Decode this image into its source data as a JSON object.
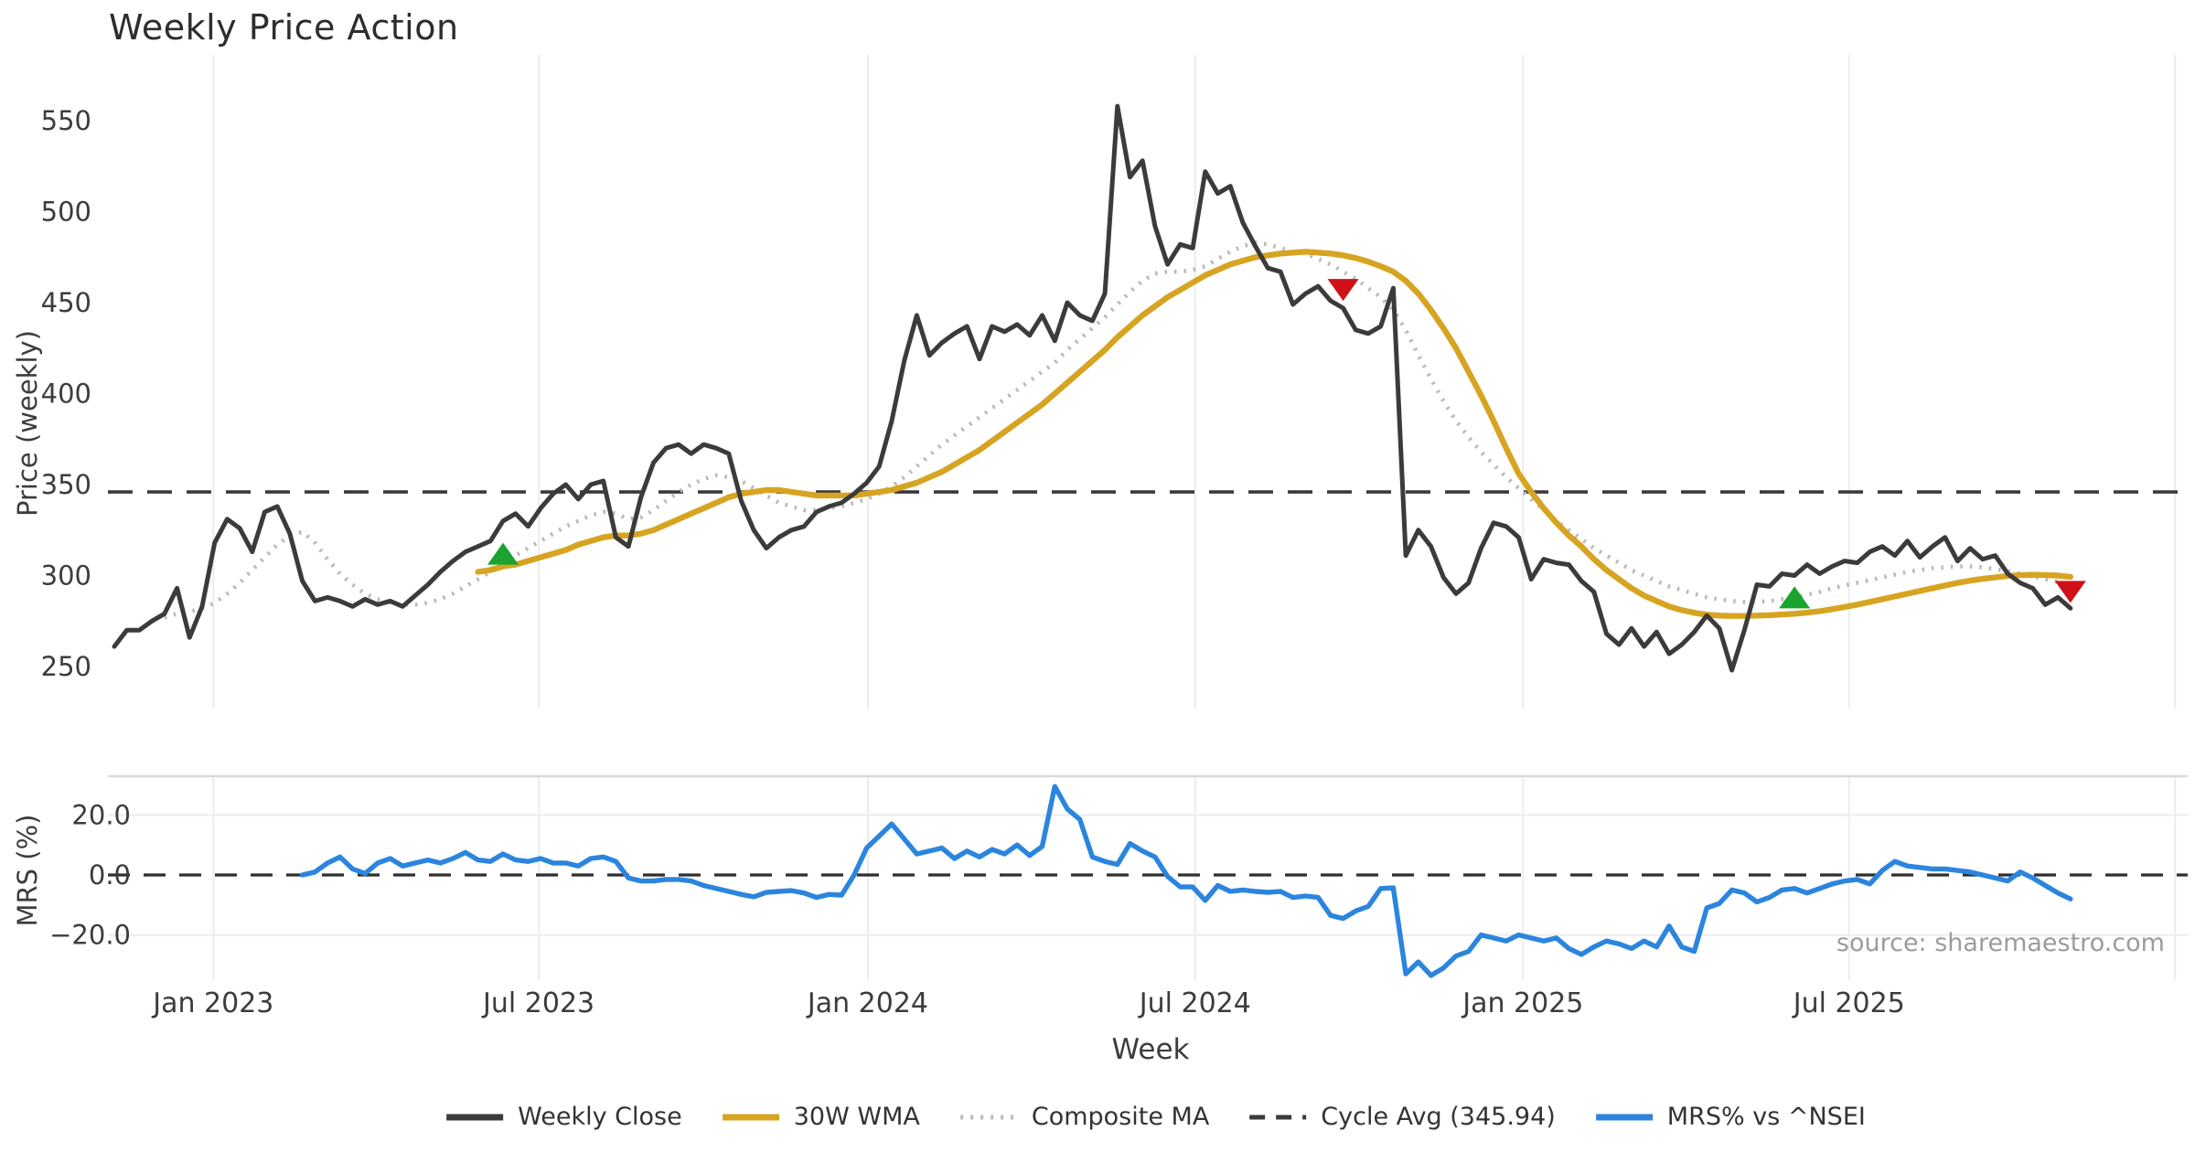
{
  "title": "Weekly Price Action",
  "source": "source: sharemaestro.com",
  "axes": {
    "price_label": "Price (weekly)",
    "mrs_label": "MRS (%)",
    "x_label": "Week",
    "price_ticks": [
      550,
      500,
      450,
      400,
      350,
      300,
      250
    ],
    "mrs_ticks": [
      {
        "label": "20.0",
        "value": 20
      },
      {
        "label": "0.0",
        "value": 0
      },
      {
        "label": "−20.0",
        "value": -20
      }
    ],
    "x_ticks": [
      {
        "label": "Jan 2023",
        "week": 7.9
      },
      {
        "label": "Jul 2023",
        "week": 33.85
      },
      {
        "label": "Jan 2024",
        "week": 60.1
      },
      {
        "label": "Jul 2024",
        "week": 86.2
      },
      {
        "label": "Jan 2025",
        "week": 112.35
      },
      {
        "label": "Jul 2025",
        "week": 138.35
      },
      {
        "label": "",
        "week": 164.35
      }
    ]
  },
  "legend": {
    "items": [
      {
        "label": "Weekly Close",
        "style": "solid",
        "color": "#3b3b3b"
      },
      {
        "label": "30W WMA",
        "style": "solid",
        "color": "#d7a422"
      },
      {
        "label": "Composite MA",
        "style": "dotted",
        "color": "#b9b9b9"
      },
      {
        "label": "Cycle Avg (345.94)",
        "style": "dashed",
        "color": "#3a3a3a"
      },
      {
        "label": "MRS% vs ^NSEI",
        "style": "solid",
        "color": "#2b85de"
      }
    ]
  },
  "colors": {
    "close": "#3b3b3b",
    "wma": "#d7a422",
    "composite": "#b9b9b9",
    "cycle": "#3a3a3a",
    "mrs": "#2b85de",
    "buy": "#1aa32e",
    "sell": "#cf1117",
    "grid": "#ececec",
    "panel_spine": "#d9d9d9",
    "hgrid": "#efefef",
    "tick_text": "#3c3c3c"
  },
  "chart_data": {
    "type": "line",
    "x_unit": "weeks",
    "n_weeks": 157,
    "cycle_avg": 345.94,
    "price_ylim": [
      235,
      575
    ],
    "mrs_ylim": [
      -33,
      33
    ],
    "series": [
      {
        "name": "Weekly Close",
        "panel": "price",
        "start_week": 0,
        "values": [
          261,
          270,
          270,
          275,
          279,
          293,
          266,
          283,
          318,
          331,
          326,
          313,
          335,
          338,
          323,
          297,
          286,
          288,
          286,
          283,
          287,
          284,
          286,
          283,
          289,
          295,
          302,
          308,
          313,
          316,
          319,
          330,
          334,
          327,
          337,
          345,
          350,
          342,
          350,
          352,
          321,
          316,
          343,
          362,
          370,
          372,
          367,
          372,
          370,
          367,
          341,
          325,
          315,
          321,
          325,
          327,
          335,
          338,
          340,
          345,
          351,
          360,
          385,
          418,
          443,
          421,
          428,
          433,
          437,
          419,
          437,
          434,
          438,
          432,
          443,
          429,
          450,
          443,
          440,
          455,
          558,
          519,
          528,
          492,
          471,
          482,
          480,
          522,
          510,
          514,
          494,
          481,
          469,
          467,
          449,
          455,
          459,
          451,
          447,
          435,
          433,
          437,
          458,
          311,
          325,
          316,
          299,
          290,
          296,
          315,
          329,
          327,
          321,
          298,
          309,
          307,
          306,
          297,
          291,
          268,
          262,
          271,
          261,
          269,
          257,
          262,
          269,
          278,
          271,
          248,
          270,
          295,
          294,
          301,
          300,
          306,
          301,
          305,
          308,
          307,
          313,
          316,
          311,
          319,
          310,
          316,
          321,
          308,
          315,
          309,
          311,
          301,
          296,
          293,
          284,
          288,
          282
        ]
      },
      {
        "name": "30W WMA",
        "panel": "price",
        "start_week": 29,
        "values": [
          302,
          303,
          305,
          306,
          308,
          310,
          312,
          314,
          317,
          319,
          321,
          322,
          322,
          323,
          325,
          328,
          331,
          334,
          337,
          340,
          343,
          345,
          346,
          347,
          347,
          346,
          345,
          344,
          344,
          344,
          344,
          345,
          346,
          347,
          349,
          351,
          354,
          357,
          361,
          365,
          369,
          374,
          379,
          384,
          389,
          394,
          400,
          406,
          412,
          418,
          424,
          431,
          437,
          443,
          448,
          453,
          457,
          461,
          465,
          468,
          471,
          473,
          475,
          476,
          477,
          477.5,
          478,
          477.5,
          477,
          476,
          474.5,
          472.5,
          470,
          467,
          462,
          455,
          446,
          436,
          425,
          412,
          399,
          385,
          370,
          356,
          346,
          337,
          329,
          322,
          316,
          309,
          303,
          298,
          293,
          289,
          286,
          283,
          281,
          279.5,
          278.5,
          278,
          277.8,
          277.8,
          278,
          278.2,
          278.6,
          279,
          279.6,
          280.4,
          281.5,
          282.7,
          284,
          285.5,
          287,
          288.5,
          290,
          291.5,
          293,
          294.5,
          296,
          297.2,
          298.2,
          299,
          299.8,
          300.2,
          300.4,
          300.3,
          300,
          299.3
        ]
      },
      {
        "name": "Composite MA",
        "panel": "price",
        "start_week": 4,
        "values": [
          277,
          279,
          280,
          282,
          285,
          290,
          296,
          303,
          310,
          317,
          322,
          324,
          318,
          309,
          301,
          295,
          290,
          287,
          285,
          284,
          284,
          285,
          287,
          290,
          294,
          298,
          302,
          307,
          311,
          315,
          319,
          323,
          327,
          330,
          333,
          335,
          334,
          331,
          332,
          336,
          341,
          346,
          350,
          353,
          355,
          354,
          352,
          348,
          344,
          340,
          338,
          336,
          336,
          337,
          338,
          340,
          342,
          345,
          349,
          354,
          360,
          366,
          372,
          377,
          382,
          387,
          392,
          397,
          402,
          407,
          412,
          417,
          424,
          430,
          436,
          442,
          449,
          456,
          462,
          466,
          467,
          467,
          468,
          470,
          474,
          478,
          481,
          483,
          482,
          480,
          478,
          477,
          474,
          471,
          467,
          463,
          458,
          453,
          446,
          435,
          421,
          408,
          396,
          385,
          376,
          368,
          361,
          354,
          348,
          342,
          336,
          330,
          325,
          320,
          315,
          311,
          307,
          303,
          300,
          297,
          294,
          292,
          290,
          288,
          287,
          286,
          285.5,
          285.5,
          286,
          287,
          288,
          289.5,
          291,
          293,
          294.5,
          296,
          297.5,
          299,
          300.5,
          302,
          303,
          304,
          304.5,
          305,
          305,
          304.5,
          303.5,
          302.5,
          301,
          299.5,
          298,
          296.5,
          295
        ]
      },
      {
        "name": "MRS% vs ^NSEI",
        "panel": "mrs",
        "start_week": 15,
        "values": [
          0,
          1,
          4,
          6,
          2,
          0.5,
          4,
          5.5,
          3,
          4,
          5,
          4,
          5.5,
          7.5,
          5,
          4.5,
          7,
          5,
          4.5,
          5.5,
          4,
          4,
          3,
          5.5,
          6,
          4.5,
          -1,
          -2,
          -2,
          -1.5,
          -1.5,
          -2,
          -3.5,
          -4.5,
          -5.5,
          -6.5,
          -7.3,
          -5.8,
          -5.5,
          -5.2,
          -6,
          -7.5,
          -6.5,
          -6.7,
          0,
          9,
          13,
          17,
          12,
          7,
          8,
          9,
          5.5,
          8,
          6,
          8.5,
          7,
          10,
          6.5,
          9.5,
          29.5,
          22,
          18.5,
          6,
          4.5,
          3.5,
          10.5,
          8,
          6,
          -0.5,
          -4,
          -4,
          -8.5,
          -3.5,
          -5.5,
          -5,
          -5.5,
          -5.8,
          -5.5,
          -7.5,
          -7,
          -7.5,
          -13.5,
          -14.5,
          -12,
          -10.5,
          -4.5,
          -4.3,
          -33,
          -29,
          -33.5,
          -31,
          -27,
          -25.5,
          -20,
          -21,
          -22,
          -20,
          -21,
          -22,
          -21,
          -24.5,
          -26.5,
          -24,
          -22,
          -23,
          -24.5,
          -22,
          -24,
          -17,
          -24,
          -25.5,
          -11,
          -9.5,
          -5,
          -6,
          -9,
          -7.5,
          -5,
          -4.5,
          -6,
          -4.5,
          -3,
          -2,
          -1.5,
          -3,
          1.5,
          4.5,
          3,
          2.5,
          2,
          2,
          1.5,
          1,
          0,
          -1,
          -2,
          1,
          -1,
          -3.5,
          -6,
          -8
        ]
      }
    ],
    "markers": [
      {
        "week": 31,
        "price": 312,
        "type": "buy"
      },
      {
        "week": 98,
        "price": 457,
        "type": "sell"
      },
      {
        "week": 134,
        "price": 288,
        "type": "buy"
      },
      {
        "week": 156,
        "price": 291,
        "type": "sell"
      }
    ]
  }
}
